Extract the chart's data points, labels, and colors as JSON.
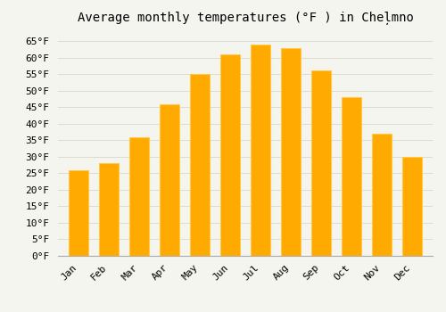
{
  "title": "Average monthly temperatures (°F ) in Cheļmno",
  "months": [
    "Jan",
    "Feb",
    "Mar",
    "Apr",
    "May",
    "Jun",
    "Jul",
    "Aug",
    "Sep",
    "Oct",
    "Nov",
    "Dec"
  ],
  "values": [
    26,
    28,
    36,
    46,
    55,
    61,
    64,
    63,
    56,
    48,
    37,
    30
  ],
  "bar_color": "#FFAA00",
  "bar_edge_color": "#FFC84A",
  "background_color": "#F5F5F0",
  "plot_bg_color": "#F5F5F0",
  "grid_color": "#DDDDCC",
  "ylim": [
    0,
    68
  ],
  "yticks": [
    0,
    5,
    10,
    15,
    20,
    25,
    30,
    35,
    40,
    45,
    50,
    55,
    60,
    65
  ],
  "ylabel_suffix": "°F",
  "title_fontsize": 10,
  "tick_fontsize": 8,
  "font_family": "monospace"
}
